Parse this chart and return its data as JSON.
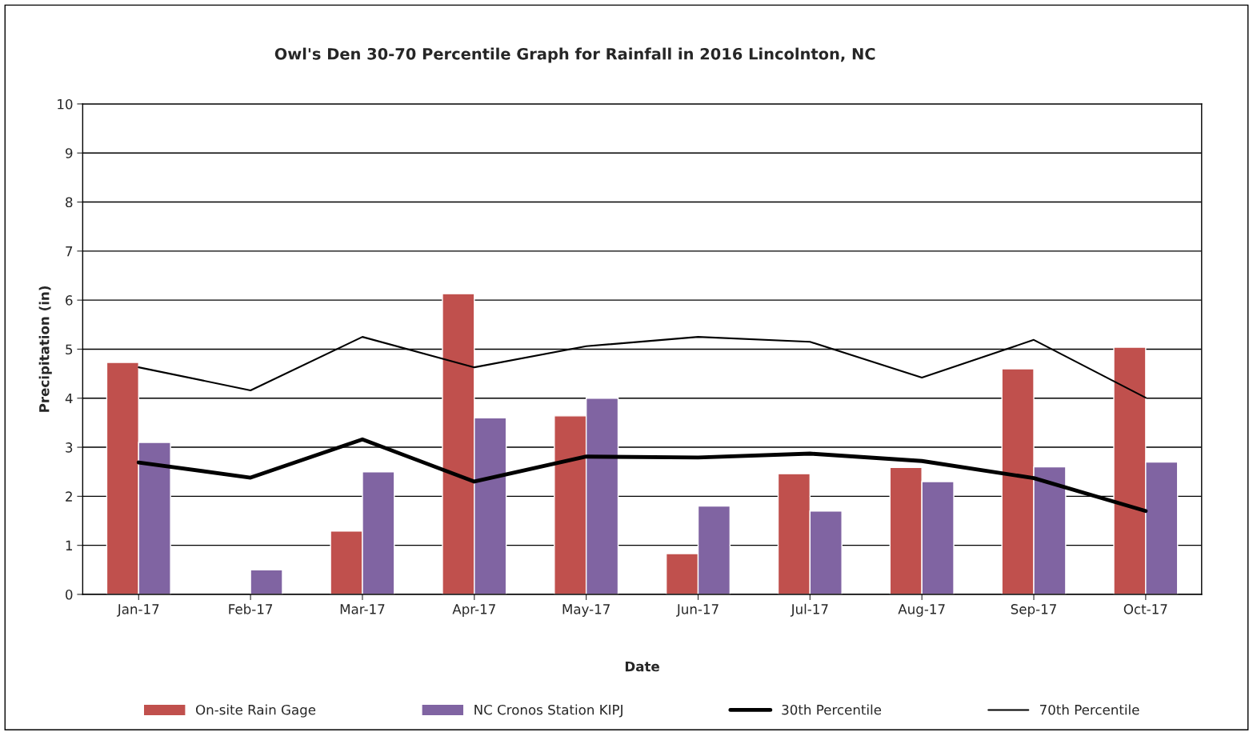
{
  "chart_data": {
    "type": "bar",
    "title": "Owl's Den 30-70 Percentile Graph for Rainfall in 2016 Lincolnton, NC",
    "xlabel": "Date",
    "ylabel": "Precipitation (in)",
    "categories": [
      "Jan-17",
      "Feb-17",
      "Mar-17",
      "Apr-17",
      "May-17",
      "Jun-17",
      "Jul-17",
      "Aug-17",
      "Sep-17",
      "Oct-17"
    ],
    "series": [
      {
        "name": "On-site Rain Gage",
        "color": "#c0504d",
        "values": [
          4.73,
          null,
          1.29,
          6.13,
          3.64,
          0.83,
          2.46,
          2.59,
          4.6,
          5.04
        ]
      },
      {
        "name": "NC Cronos Station KIPJ",
        "color": "#8064a2",
        "values": [
          3.1,
          0.5,
          2.5,
          3.6,
          4.0,
          1.8,
          1.7,
          2.3,
          2.6,
          2.7
        ]
      },
      {
        "name": "30th Percentile",
        "type": "line",
        "color": "#000000",
        "values": [
          2.69,
          2.38,
          3.16,
          2.3,
          2.81,
          2.79,
          2.87,
          2.72,
          2.37,
          1.7
        ]
      },
      {
        "name": "70th Percentile",
        "type": "line",
        "color": "#000000",
        "values": [
          4.63,
          4.16,
          5.25,
          4.63,
          5.06,
          5.25,
          5.15,
          4.42,
          5.19,
          4.01
        ]
      }
    ],
    "ylim": [
      0,
      10
    ],
    "yticks": [
      0,
      1,
      2,
      3,
      4,
      5,
      6,
      7,
      8,
      9,
      10
    ],
    "grid": "y",
    "legend": "bottom"
  }
}
